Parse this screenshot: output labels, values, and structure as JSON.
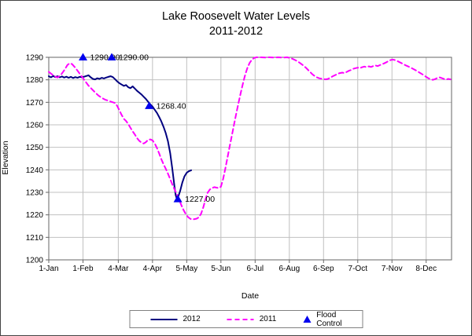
{
  "chart_data": {
    "type": "line",
    "title": "Lake Roosevelt Water Levels",
    "subtitle": "2011-2012",
    "xlabel": "Date",
    "ylabel": "Elevation",
    "x_unit": "day-of-year",
    "x_range": [
      1,
      366
    ],
    "ylim": [
      1200,
      1290
    ],
    "grid": true,
    "legend_position": "bottom",
    "y_ticks": [
      1200,
      1210,
      1220,
      1230,
      1240,
      1250,
      1260,
      1270,
      1280,
      1290
    ],
    "x_ticks": [
      {
        "day": 1,
        "label": "1-Jan"
      },
      {
        "day": 32,
        "label": "1-Feb"
      },
      {
        "day": 64,
        "label": "4-Mar"
      },
      {
        "day": 95,
        "label": "4-Apr"
      },
      {
        "day": 126,
        "label": "5-May"
      },
      {
        "day": 157,
        "label": "5-Jun"
      },
      {
        "day": 188,
        "label": "6-Jul"
      },
      {
        "day": 219,
        "label": "6-Aug"
      },
      {
        "day": 250,
        "label": "6-Sep"
      },
      {
        "day": 281,
        "label": "7-Oct"
      },
      {
        "day": 312,
        "label": "7-Nov"
      },
      {
        "day": 343,
        "label": "8-Dec"
      }
    ],
    "colors": {
      "grid": "#c0c0c0",
      "axis": "#666666",
      "text": "#000000"
    },
    "series": [
      {
        "name": "2012",
        "color": "#000080",
        "style": "solid",
        "points": [
          [
            1,
            1281.6
          ],
          [
            3,
            1281.1
          ],
          [
            5,
            1281.7
          ],
          [
            7,
            1281.2
          ],
          [
            9,
            1281.6
          ],
          [
            11,
            1281.1
          ],
          [
            13,
            1281.5
          ],
          [
            15,
            1281.0
          ],
          [
            17,
            1281.4
          ],
          [
            19,
            1280.9
          ],
          [
            21,
            1281.3
          ],
          [
            23,
            1280.8
          ],
          [
            25,
            1281.2
          ],
          [
            27,
            1280.9
          ],
          [
            29,
            1281.3
          ],
          [
            31,
            1281.1
          ],
          [
            33,
            1281.4
          ],
          [
            35,
            1281.7
          ],
          [
            37,
            1282.0
          ],
          [
            39,
            1281.1
          ],
          [
            41,
            1280.4
          ],
          [
            43,
            1280.2
          ],
          [
            45,
            1280.7
          ],
          [
            47,
            1280.4
          ],
          [
            49,
            1280.9
          ],
          [
            51,
            1280.6
          ],
          [
            53,
            1281.0
          ],
          [
            55,
            1281.3
          ],
          [
            57,
            1281.6
          ],
          [
            59,
            1281.2
          ],
          [
            61,
            1280.3
          ],
          [
            63,
            1279.3
          ],
          [
            65,
            1278.5
          ],
          [
            67,
            1277.9
          ],
          [
            69,
            1277.3
          ],
          [
            71,
            1277.7
          ],
          [
            73,
            1276.7
          ],
          [
            75,
            1276.3
          ],
          [
            77,
            1277.1
          ],
          [
            79,
            1276.1
          ],
          [
            81,
            1275.1
          ],
          [
            83,
            1274.3
          ],
          [
            85,
            1273.5
          ],
          [
            87,
            1272.5
          ],
          [
            89,
            1271.5
          ],
          [
            91,
            1270.3
          ],
          [
            93,
            1269.1
          ],
          [
            95,
            1268.1
          ],
          [
            97,
            1266.7
          ],
          [
            99,
            1265.3
          ],
          [
            101,
            1263.5
          ],
          [
            103,
            1261.5
          ],
          [
            105,
            1259.1
          ],
          [
            107,
            1256.3
          ],
          [
            109,
            1252.7
          ],
          [
            111,
            1247.5
          ],
          [
            113,
            1240.3
          ],
          [
            115,
            1232.3
          ],
          [
            116,
            1228.8
          ],
          [
            117,
            1227.2
          ],
          [
            118,
            1227.6
          ],
          [
            120,
            1230.5
          ],
          [
            122,
            1234.3
          ],
          [
            124,
            1237.1
          ],
          [
            126,
            1238.7
          ],
          [
            128,
            1239.4
          ],
          [
            130,
            1239.8
          ]
        ]
      },
      {
        "name": "2011",
        "color": "#FF00FF",
        "style": "dashed",
        "points": [
          [
            1,
            1283.5
          ],
          [
            4,
            1282.4
          ],
          [
            7,
            1281.4
          ],
          [
            9,
            1281.0
          ],
          [
            12,
            1282.2
          ],
          [
            15,
            1284.2
          ],
          [
            18,
            1286.6
          ],
          [
            20,
            1287.4
          ],
          [
            22,
            1287.0
          ],
          [
            25,
            1285.4
          ],
          [
            28,
            1283.4
          ],
          [
            31,
            1281.4
          ],
          [
            34,
            1279.4
          ],
          [
            37,
            1277.4
          ],
          [
            40,
            1275.9
          ],
          [
            43,
            1274.4
          ],
          [
            46,
            1273.0
          ],
          [
            49,
            1272.0
          ],
          [
            52,
            1271.2
          ],
          [
            55,
            1270.7
          ],
          [
            58,
            1270.2
          ],
          [
            61,
            1269.7
          ],
          [
            63,
            1268.4
          ],
          [
            65,
            1266.4
          ],
          [
            67,
            1264.4
          ],
          [
            69,
            1262.7
          ],
          [
            71,
            1261.7
          ],
          [
            73,
            1260.4
          ],
          [
            75,
            1258.7
          ],
          [
            77,
            1257.1
          ],
          [
            79,
            1255.7
          ],
          [
            81,
            1254.1
          ],
          [
            83,
            1252.9
          ],
          [
            85,
            1252.1
          ],
          [
            87,
            1251.7
          ],
          [
            89,
            1252.3
          ],
          [
            91,
            1253.3
          ],
          [
            93,
            1253.5
          ],
          [
            95,
            1253.1
          ],
          [
            97,
            1251.7
          ],
          [
            99,
            1249.7
          ],
          [
            101,
            1247.3
          ],
          [
            103,
            1244.7
          ],
          [
            105,
            1242.5
          ],
          [
            107,
            1240.5
          ],
          [
            109,
            1238.3
          ],
          [
            111,
            1235.9
          ],
          [
            113,
            1233.5
          ],
          [
            115,
            1231.3
          ],
          [
            117,
            1229.3
          ],
          [
            119,
            1226.9
          ],
          [
            121,
            1224.5
          ],
          [
            123,
            1222.3
          ],
          [
            125,
            1220.5
          ],
          [
            127,
            1219.1
          ],
          [
            129,
            1218.3
          ],
          [
            131,
            1217.9
          ],
          [
            133,
            1218.1
          ],
          [
            135,
            1218.3
          ],
          [
            137,
            1218.9
          ],
          [
            139,
            1220.5
          ],
          [
            141,
            1223.3
          ],
          [
            143,
            1226.9
          ],
          [
            145,
            1229.9
          ],
          [
            147,
            1231.3
          ],
          [
            149,
            1231.9
          ],
          [
            151,
            1232.3
          ],
          [
            153,
            1232.1
          ],
          [
            155,
            1231.9
          ],
          [
            157,
            1232.5
          ],
          [
            159,
            1235.9
          ],
          [
            161,
            1240.5
          ],
          [
            163,
            1245.5
          ],
          [
            165,
            1250.5
          ],
          [
            167,
            1255.5
          ],
          [
            169,
            1260.5
          ],
          [
            171,
            1265.3
          ],
          [
            173,
            1269.9
          ],
          [
            175,
            1274.3
          ],
          [
            177,
            1278.5
          ],
          [
            179,
            1282.3
          ],
          [
            181,
            1285.3
          ],
          [
            183,
            1287.5
          ],
          [
            185,
            1288.9
          ],
          [
            187,
            1289.7
          ],
          [
            189,
            1290.0
          ],
          [
            193,
            1290.0
          ],
          [
            197,
            1289.9
          ],
          [
            201,
            1290.0
          ],
          [
            205,
            1289.9
          ],
          [
            209,
            1290.0
          ],
          [
            213,
            1289.9
          ],
          [
            217,
            1290.0
          ],
          [
            219,
            1289.8
          ],
          [
            222,
            1289.3
          ],
          [
            225,
            1288.6
          ],
          [
            228,
            1287.7
          ],
          [
            231,
            1286.6
          ],
          [
            234,
            1285.4
          ],
          [
            237,
            1283.9
          ],
          [
            240,
            1282.4
          ],
          [
            243,
            1281.3
          ],
          [
            246,
            1280.7
          ],
          [
            249,
            1280.4
          ],
          [
            252,
            1280.2
          ],
          [
            254,
            1280.4
          ],
          [
            256,
            1280.9
          ],
          [
            258,
            1281.5
          ],
          [
            261,
            1282.2
          ],
          [
            264,
            1282.9
          ],
          [
            267,
            1283.2
          ],
          [
            269,
            1283.0
          ],
          [
            271,
            1283.5
          ],
          [
            273,
            1284.0
          ],
          [
            275,
            1284.4
          ],
          [
            277,
            1284.9
          ],
          [
            279,
            1285.2
          ],
          [
            281,
            1285.4
          ],
          [
            283,
            1285.2
          ],
          [
            285,
            1285.6
          ],
          [
            287,
            1285.9
          ],
          [
            289,
            1285.6
          ],
          [
            291,
            1286.0
          ],
          [
            293,
            1285.7
          ],
          [
            295,
            1286.1
          ],
          [
            297,
            1286.4
          ],
          [
            299,
            1286.1
          ],
          [
            301,
            1286.5
          ],
          [
            303,
            1286.9
          ],
          [
            305,
            1287.3
          ],
          [
            307,
            1287.8
          ],
          [
            309,
            1288.4
          ],
          [
            311,
            1288.8
          ],
          [
            313,
            1289.0
          ],
          [
            315,
            1288.7
          ],
          [
            317,
            1288.3
          ],
          [
            319,
            1287.8
          ],
          [
            321,
            1287.3
          ],
          [
            323,
            1286.8
          ],
          [
            325,
            1286.3
          ],
          [
            327,
            1285.9
          ],
          [
            329,
            1285.4
          ],
          [
            331,
            1284.9
          ],
          [
            333,
            1284.4
          ],
          [
            335,
            1283.8
          ],
          [
            337,
            1283.2
          ],
          [
            339,
            1282.6
          ],
          [
            341,
            1282.0
          ],
          [
            343,
            1281.3
          ],
          [
            345,
            1280.7
          ],
          [
            347,
            1280.3
          ],
          [
            349,
            1280.0
          ],
          [
            351,
            1280.3
          ],
          [
            353,
            1280.8
          ],
          [
            355,
            1281.1
          ],
          [
            357,
            1280.8
          ],
          [
            359,
            1280.4
          ],
          [
            361,
            1280.1
          ],
          [
            363,
            1280.4
          ],
          [
            365,
            1280.2
          ]
        ]
      }
    ],
    "markers": {
      "name": "Flood Control",
      "color": "#0000EE",
      "shape": "triangle",
      "points": [
        {
          "day": 32,
          "value": 1290,
          "label": "1290.00"
        },
        {
          "day": 58,
          "value": 1290,
          "label": "1290.00"
        },
        {
          "day": 92,
          "value": 1268.4,
          "label": "1268.40"
        },
        {
          "day": 118,
          "value": 1227,
          "label": "1227.00"
        }
      ]
    }
  }
}
